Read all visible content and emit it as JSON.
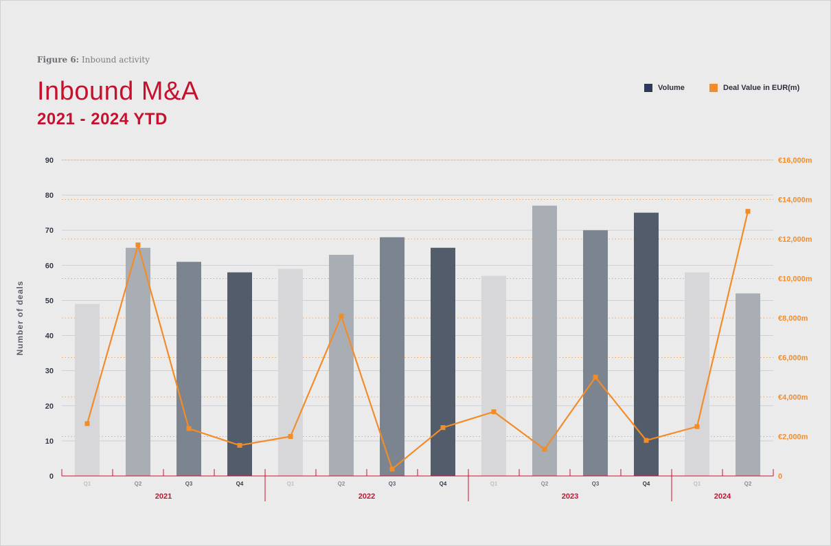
{
  "figure_label": {
    "prefix": "Figure 6:",
    "text": "Inbound activity"
  },
  "title": "Inbound M&A",
  "subtitle": "2021 - 2024 YTD",
  "legend": {
    "volume": {
      "label": "Volume",
      "color": "#2c3a55"
    },
    "deal_value": {
      "label": "Deal Value in EUR(m)",
      "color": "#f28c28"
    }
  },
  "chart_data": {
    "type": "bar",
    "ylabel": "Number of deals",
    "ylim": [
      0,
      90
    ],
    "y_ticks": [
      "0",
      "10",
      "20",
      "30",
      "40",
      "50",
      "60",
      "70",
      "80",
      "90"
    ],
    "y2lim": [
      0,
      16000
    ],
    "y2_ticks": [
      "0",
      "€2,000m",
      "€4,000m",
      "€6,000m",
      "€8,000m",
      "€10,000m",
      "€12,000m",
      "€14,000m",
      "€16,000m"
    ],
    "categories": [
      "Q1",
      "Q2",
      "Q3",
      "Q4",
      "Q1",
      "Q2",
      "Q3",
      "Q4",
      "Q1",
      "Q2",
      "Q3",
      "Q4",
      "Q1",
      "Q2"
    ],
    "years": [
      {
        "label": "2021",
        "quarters": 4
      },
      {
        "label": "2022",
        "quarters": 4
      },
      {
        "label": "2023",
        "quarters": 4
      },
      {
        "label": "2024",
        "quarters": 2
      }
    ],
    "series": [
      {
        "name": "Volume",
        "type": "bar",
        "axis": "left",
        "values": [
          49,
          65,
          61,
          58,
          59,
          63,
          68,
          65,
          57,
          77,
          70,
          75,
          58,
          52
        ]
      },
      {
        "name": "Deal Value in EUR(m)",
        "type": "line",
        "axis": "right",
        "values": [
          2650,
          11700,
          2400,
          1550,
          2000,
          8100,
          350,
          2450,
          3250,
          1350,
          5000,
          1800,
          2500,
          13400
        ]
      }
    ],
    "bar_colors": [
      "#d7d7da",
      "#a9aeb5",
      "#7c858f",
      "#525c6a"
    ],
    "quarter_label_colors": [
      "#c2c2c6",
      "#8a8e96",
      "#5a606c",
      "#333844"
    ],
    "line_color": "#f28c28",
    "year_label_color": "#c8102e",
    "grid": true
  }
}
